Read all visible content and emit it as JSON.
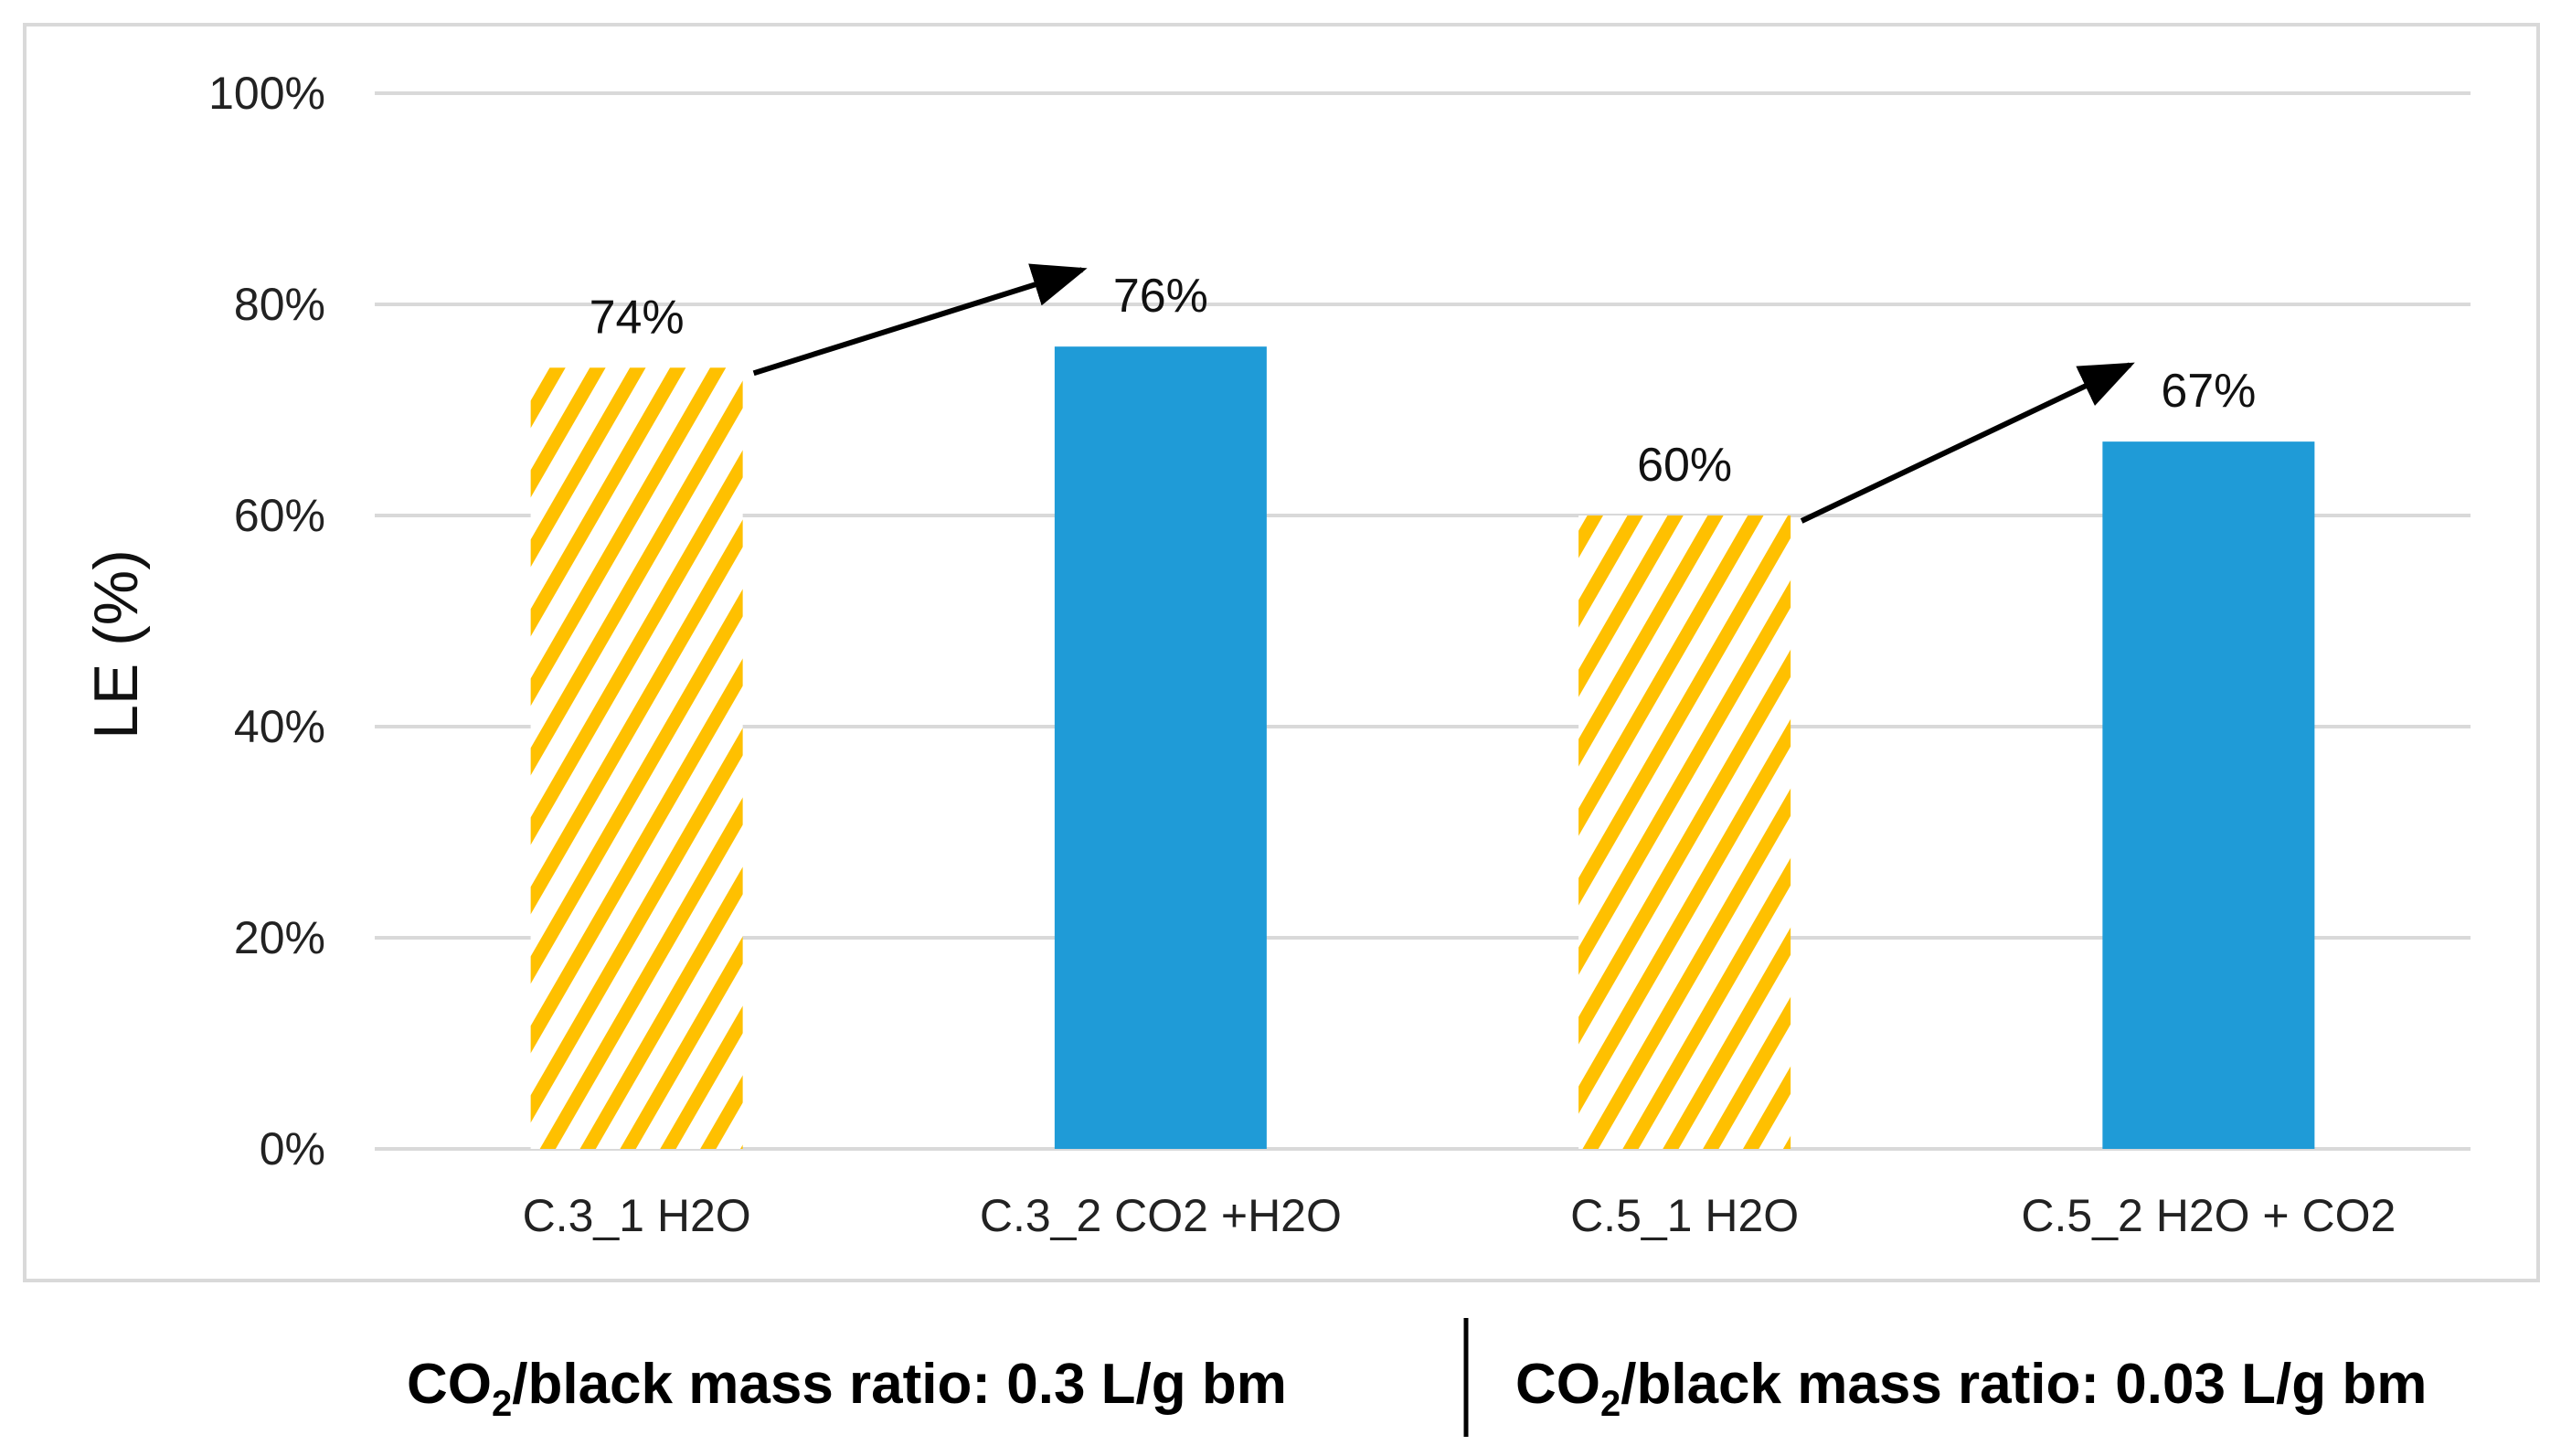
{
  "chart_data": {
    "type": "bar",
    "title": "",
    "xlabel": "",
    "ylabel": "LE (%)",
    "ylim": [
      0,
      100
    ],
    "yticks": [
      "0%",
      "20%",
      "40%",
      "60%",
      "80%",
      "100%"
    ],
    "ytick_values": [
      0,
      20,
      40,
      60,
      80,
      100
    ],
    "grid": true,
    "categories": [
      "C.3_1  H2O",
      "C.3_2 CO2 +H2O",
      "C.5_1 H2O",
      "C.5_2 H2O + CO2"
    ],
    "values": [
      74,
      76,
      60,
      67
    ],
    "data_labels": [
      "74%",
      "76%",
      "60%",
      "67%"
    ],
    "bar_styles": [
      "hatched",
      "solid",
      "hatched",
      "solid"
    ],
    "colors": {
      "hatched": "#FFC000",
      "solid": "#1F9BD7",
      "grid": "#D9D9D9"
    },
    "annotations": [
      {
        "type": "arrow",
        "from": "C.3_1  H2O",
        "to": "C.3_2 CO2 +H2O"
      },
      {
        "type": "arrow",
        "from": "C.5_1 H2O",
        "to": "C.5_2 H2O + CO2"
      }
    ],
    "group_labels": [
      {
        "prefix": "CO",
        "sub": "2",
        "text": "/black mass ratio: 0.3 L/g bm"
      },
      {
        "prefix": "CO",
        "sub": "2",
        "text": "/black mass ratio: 0.03 L/g bm"
      }
    ]
  }
}
